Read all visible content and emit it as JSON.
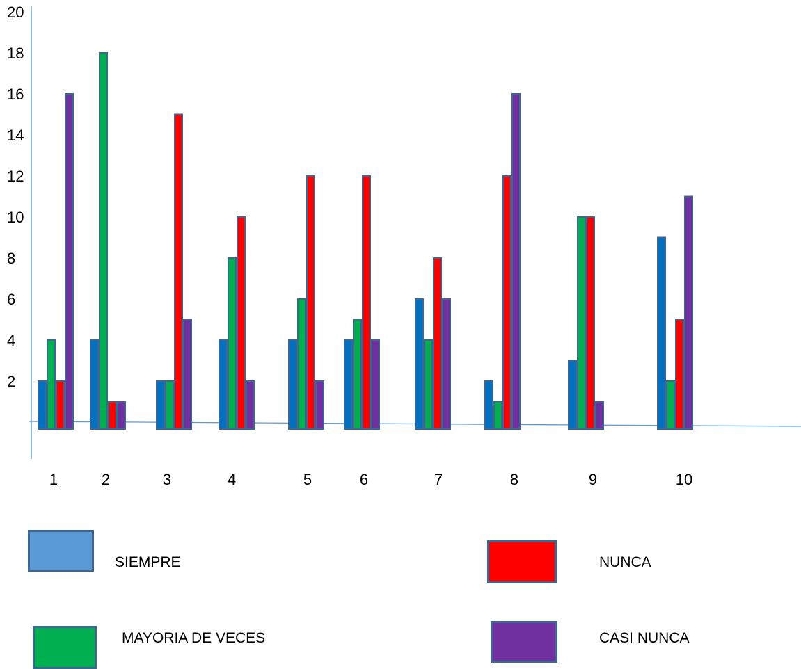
{
  "chart_data": {
    "type": "bar",
    "title": "",
    "xlabel": "",
    "ylabel": "",
    "ylim": [
      0,
      20
    ],
    "yticks": [
      "2",
      "4",
      "6",
      "8",
      "10",
      "12",
      "14",
      "16",
      "18",
      "20"
    ],
    "categories": [
      "1",
      "2",
      "3",
      "4",
      "5",
      "6",
      "7",
      "8",
      "9",
      "10"
    ],
    "grid": false,
    "legend_position": "bottom",
    "series": [
      {
        "name": "SIEMPRE",
        "color": "#0070c0",
        "values": [
          2,
          4,
          2,
          4,
          4,
          4,
          6,
          2,
          3,
          9
        ]
      },
      {
        "name": "MAYORIA DE VECES",
        "color": "#00b050",
        "values": [
          4,
          18,
          2,
          8,
          6,
          5,
          4,
          1,
          10,
          2
        ]
      },
      {
        "name": "NUNCA",
        "color": "#ff0000",
        "values": [
          2,
          1,
          15,
          10,
          12,
          12,
          8,
          12,
          10,
          5
        ]
      },
      {
        "name": "CASI NUNCA",
        "color": "#7030a0",
        "values": [
          16,
          1,
          5,
          2,
          2,
          4,
          6,
          16,
          1,
          11
        ]
      }
    ]
  },
  "legend": {
    "siempre": {
      "label": "SIEMPRE",
      "swatch_color": "#5b9bd5"
    },
    "nunca": {
      "label": "NUNCA",
      "swatch_color": "#ff0000"
    },
    "mayoria": {
      "label": "MAYORIA DE VECES",
      "swatch_color": "#00b050"
    },
    "casi_nunca": {
      "label": "CASI NUNCA",
      "swatch_color": "#7030a0"
    }
  }
}
